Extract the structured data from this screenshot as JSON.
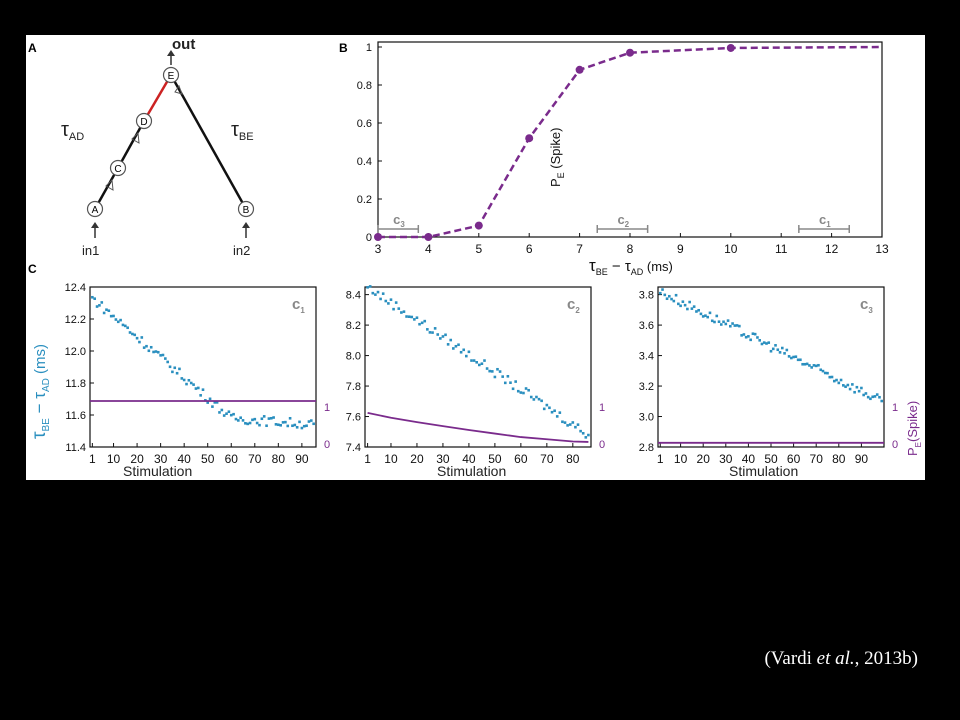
{
  "panel_labels": {
    "a": "A",
    "b": "B",
    "c": "C"
  },
  "diagram": {
    "out_label": "out",
    "in1_label": "in1",
    "in2_label": "in2",
    "tau_ad": "τ",
    "tau_ad_sub": "AD",
    "tau_be": "τ",
    "tau_be_sub": "BE",
    "nodes": [
      "A",
      "C",
      "D",
      "E",
      "B"
    ],
    "highlight_color": "#cc2222"
  },
  "citation": {
    "prefix": "(Vardi ",
    "italic": "et al.",
    "suffix": ", 2013b)"
  },
  "colors": {
    "purple": "#7a2b8c",
    "teal": "#2a8fbf",
    "gray": "#888888"
  },
  "chart_data": [
    {
      "type": "line",
      "panel": "B",
      "ylabel_main": "P",
      "ylabel_sub": "E",
      "ylabel_rest": " (Spike)",
      "xlabel_main": "τ",
      "xlabel_sub1": "BE",
      "xlabel_mid": " − τ",
      "xlabel_sub2": "AD",
      "xlabel_unit": " (ms)",
      "xlim": [
        3,
        13
      ],
      "ylim": [
        0,
        1
      ],
      "xticks": [
        3,
        4,
        5,
        6,
        7,
        8,
        9,
        10,
        11,
        12,
        13
      ],
      "yticks": [
        0,
        0.2,
        0.4,
        0.6,
        0.8,
        1
      ],
      "ytick_labels": [
        "0",
        "0.2",
        "0.4",
        "0.6",
        "0.8",
        "1"
      ],
      "x": [
        3,
        4,
        5,
        6,
        7,
        8,
        10,
        13
      ],
      "y": [
        0,
        0,
        0.06,
        0.52,
        0.88,
        0.97,
        0.995,
        1.0
      ],
      "markers_x": [
        3,
        4,
        5,
        6,
        7,
        8,
        10
      ],
      "ranges": [
        {
          "label": "c",
          "sub": "3",
          "from": 3,
          "to": 3.8
        },
        {
          "label": "c",
          "sub": "2",
          "from": 7.35,
          "to": 8.35
        },
        {
          "label": "c",
          "sub": "1",
          "from": 11.35,
          "to": 12.35
        }
      ]
    },
    {
      "type": "scatter",
      "panel": "C1",
      "label": "c",
      "label_sub": "1",
      "xlabel": "Stimulation",
      "ylabel_main": "τ",
      "ylabel_sub1": "BE",
      "ylabel_mid": " − τ",
      "ylabel_sub2": "AD",
      "ylabel_unit": " (ms)",
      "xlim": [
        0,
        96
      ],
      "ylim": [
        11.4,
        12.4
      ],
      "xticks": [
        1,
        10,
        20,
        30,
        40,
        50,
        60,
        70,
        80,
        90
      ],
      "yticks": [
        11.4,
        11.6,
        11.8,
        12.0,
        12.2,
        12.4
      ],
      "ytick_labels": [
        "11.4",
        "11.6",
        "11.8",
        "12.0",
        "12.2",
        "12.4"
      ],
      "trend": {
        "x_start": 1,
        "x_end": 95,
        "y_start": 12.33,
        "y_end": 11.5,
        "plateau_x": 60,
        "plateau_y": 11.58
      },
      "pspike_level": 1,
      "right_ticks": [
        "1",
        "0"
      ]
    },
    {
      "type": "scatter",
      "panel": "C2",
      "label": "c",
      "label_sub": "2",
      "xlabel": "Stimulation",
      "xlim": [
        0,
        87
      ],
      "ylim": [
        7.4,
        8.45
      ],
      "xticks": [
        1,
        10,
        20,
        30,
        40,
        50,
        60,
        70,
        80
      ],
      "yticks": [
        7.4,
        7.6,
        7.8,
        8.0,
        8.2,
        8.4
      ],
      "ytick_labels": [
        "7.4",
        "7.6",
        "7.8",
        "8.0",
        "8.2",
        "8.4"
      ],
      "trend": {
        "x_start": 1,
        "x_end": 86,
        "y_start": 8.45,
        "y_end": 7.48
      },
      "pspike_curve": {
        "x": [
          1,
          10,
          20,
          30,
          40,
          50,
          60,
          70,
          80,
          86
        ],
        "y": [
          0.73,
          0.62,
          0.52,
          0.43,
          0.34,
          0.26,
          0.18,
          0.13,
          0.08,
          0.07
        ]
      },
      "right_ticks": [
        "1",
        "0"
      ]
    },
    {
      "type": "scatter",
      "panel": "C3",
      "label": "c",
      "label_sub": "3",
      "xlabel": "Stimulation",
      "right_ylabel_main": "P",
      "right_ylabel_sub": "E",
      "right_ylabel_rest": "(Spike)",
      "xlim": [
        0,
        100
      ],
      "ylim": [
        2.8,
        3.85
      ],
      "xticks": [
        1,
        10,
        20,
        30,
        40,
        50,
        60,
        70,
        80,
        90
      ],
      "yticks": [
        2.8,
        3.0,
        3.2,
        3.4,
        3.6,
        3.8
      ],
      "ytick_labels": [
        "2.8",
        "3.0",
        "3.2",
        "3.4",
        "3.6",
        "3.8"
      ],
      "trend": {
        "x_start": 1,
        "x_end": 99,
        "y_start": 3.82,
        "y_end": 3.1
      },
      "pspike_level": 0.05,
      "right_ticks": [
        "1",
        "0"
      ]
    }
  ]
}
